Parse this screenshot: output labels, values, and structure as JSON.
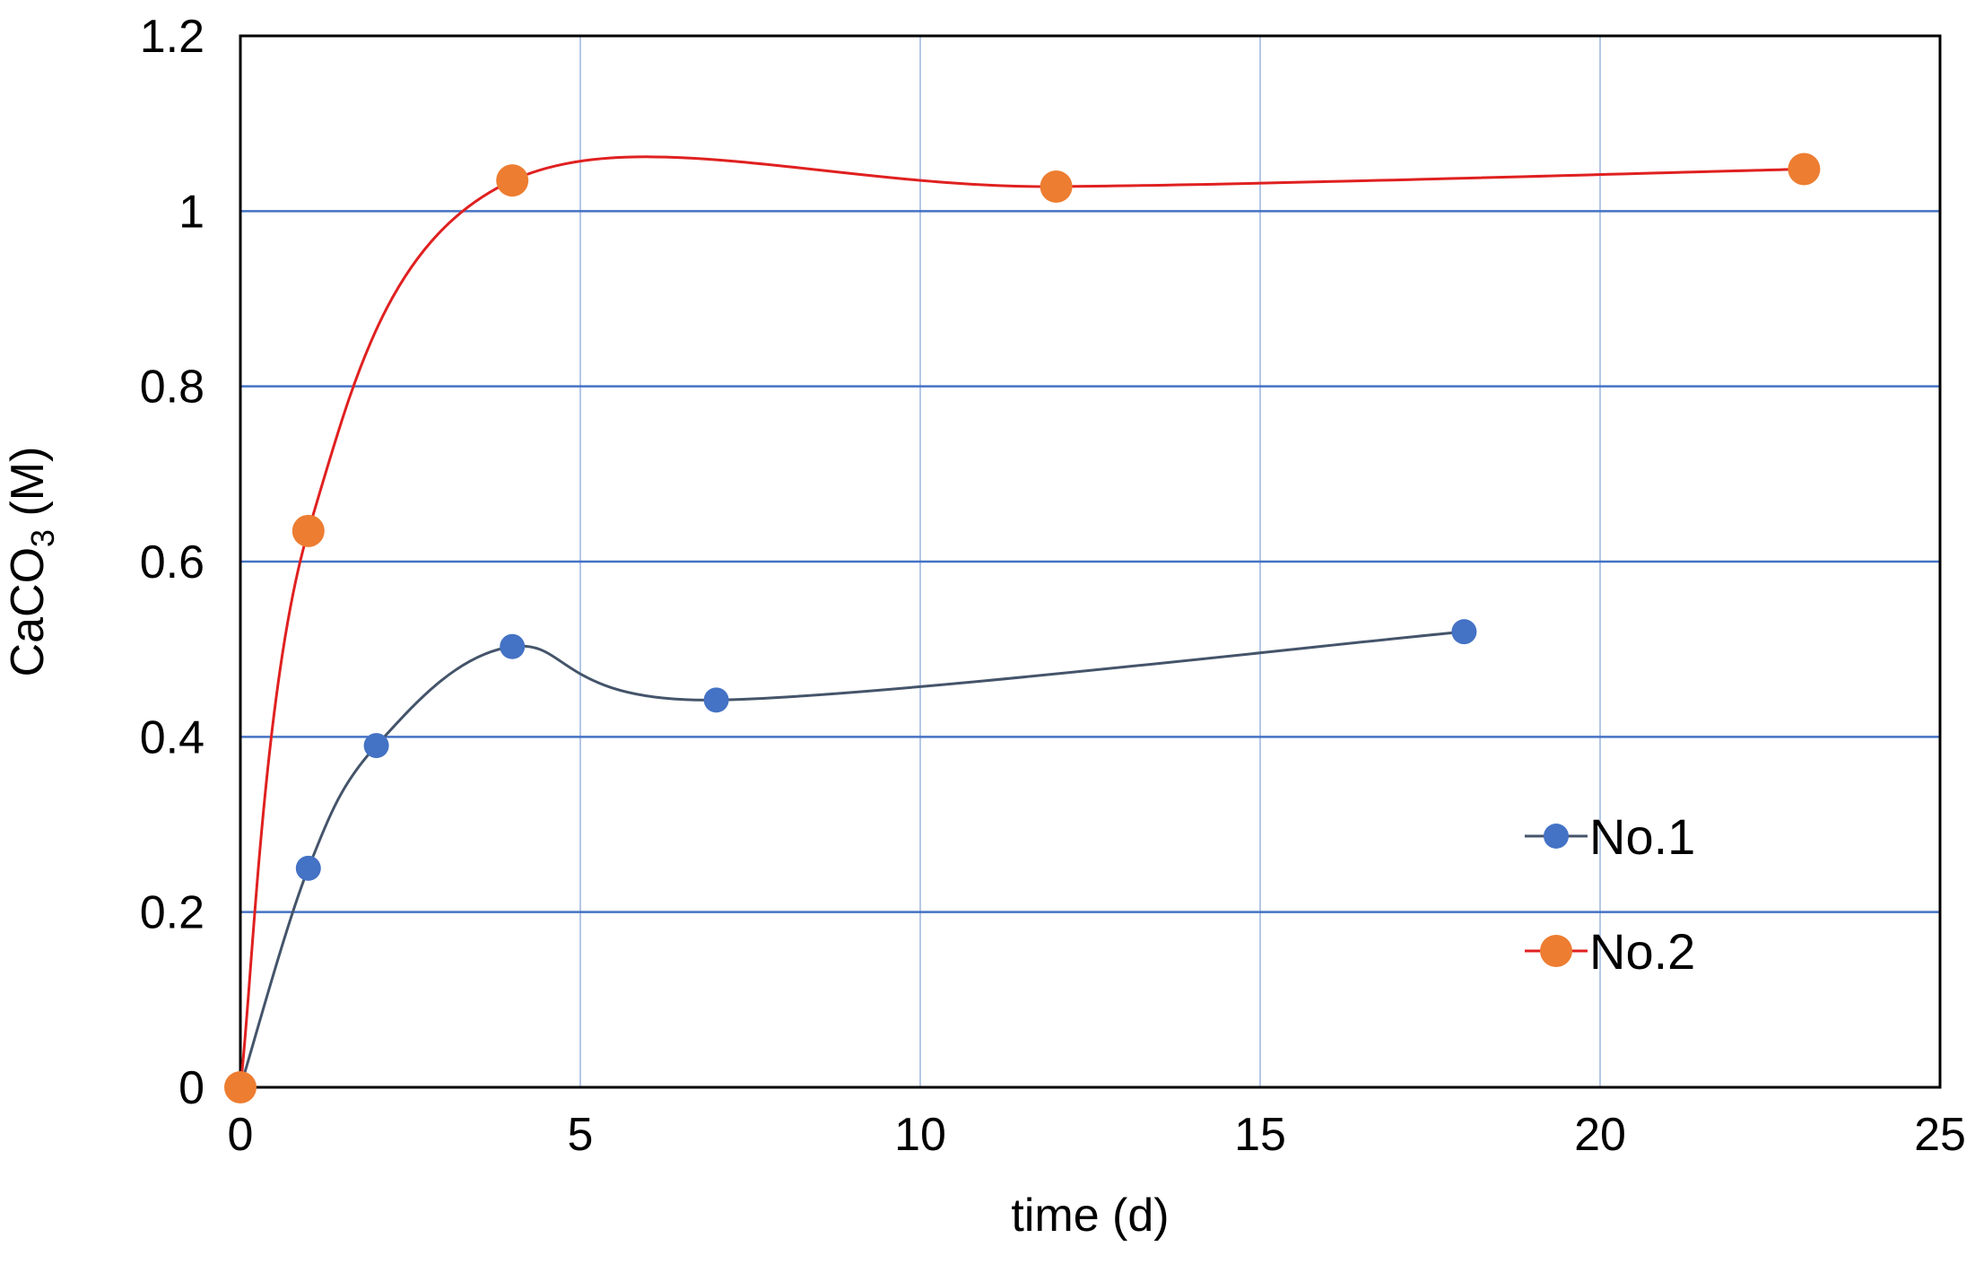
{
  "chart_data": {
    "type": "scatter",
    "title": "",
    "xlabel": "time (d)",
    "ylabel": {
      "main": "CaCO",
      "subscript": "3",
      "suffix": " (M)"
    },
    "xlim": [
      0,
      25
    ],
    "ylim": [
      0,
      1.2
    ],
    "x_ticks": [
      0,
      5,
      10,
      15,
      20,
      25
    ],
    "y_ticks": [
      0,
      0.2,
      0.4,
      0.6,
      0.8,
      1,
      1.2
    ],
    "x_tick_labels": [
      "0",
      "5",
      "10",
      "15",
      "20",
      "25"
    ],
    "y_tick_labels": [
      "0",
      "0.2",
      "0.4",
      "0.6",
      "0.8",
      "1",
      "1.2"
    ],
    "grid": true,
    "smoothed_lines": true,
    "legend_position": "lower-right",
    "series": [
      {
        "name": "No.1",
        "color": "#4472C4",
        "line_color": "#44546A",
        "x": [
          0,
          1,
          2,
          4,
          7,
          18
        ],
        "y": [
          0,
          0.25,
          0.39,
          0.503,
          0.442,
          0.52
        ]
      },
      {
        "name": "No.2",
        "color": "#ED7D31",
        "line_color": "#E02020",
        "x": [
          0,
          1,
          4,
          12,
          23
        ],
        "y": [
          0,
          0.635,
          1.035,
          1.028,
          1.048
        ]
      }
    ]
  },
  "colors": {
    "major_grid": "#4472C4",
    "minor_grid": "#B4C7E7",
    "frame": "#000000"
  }
}
